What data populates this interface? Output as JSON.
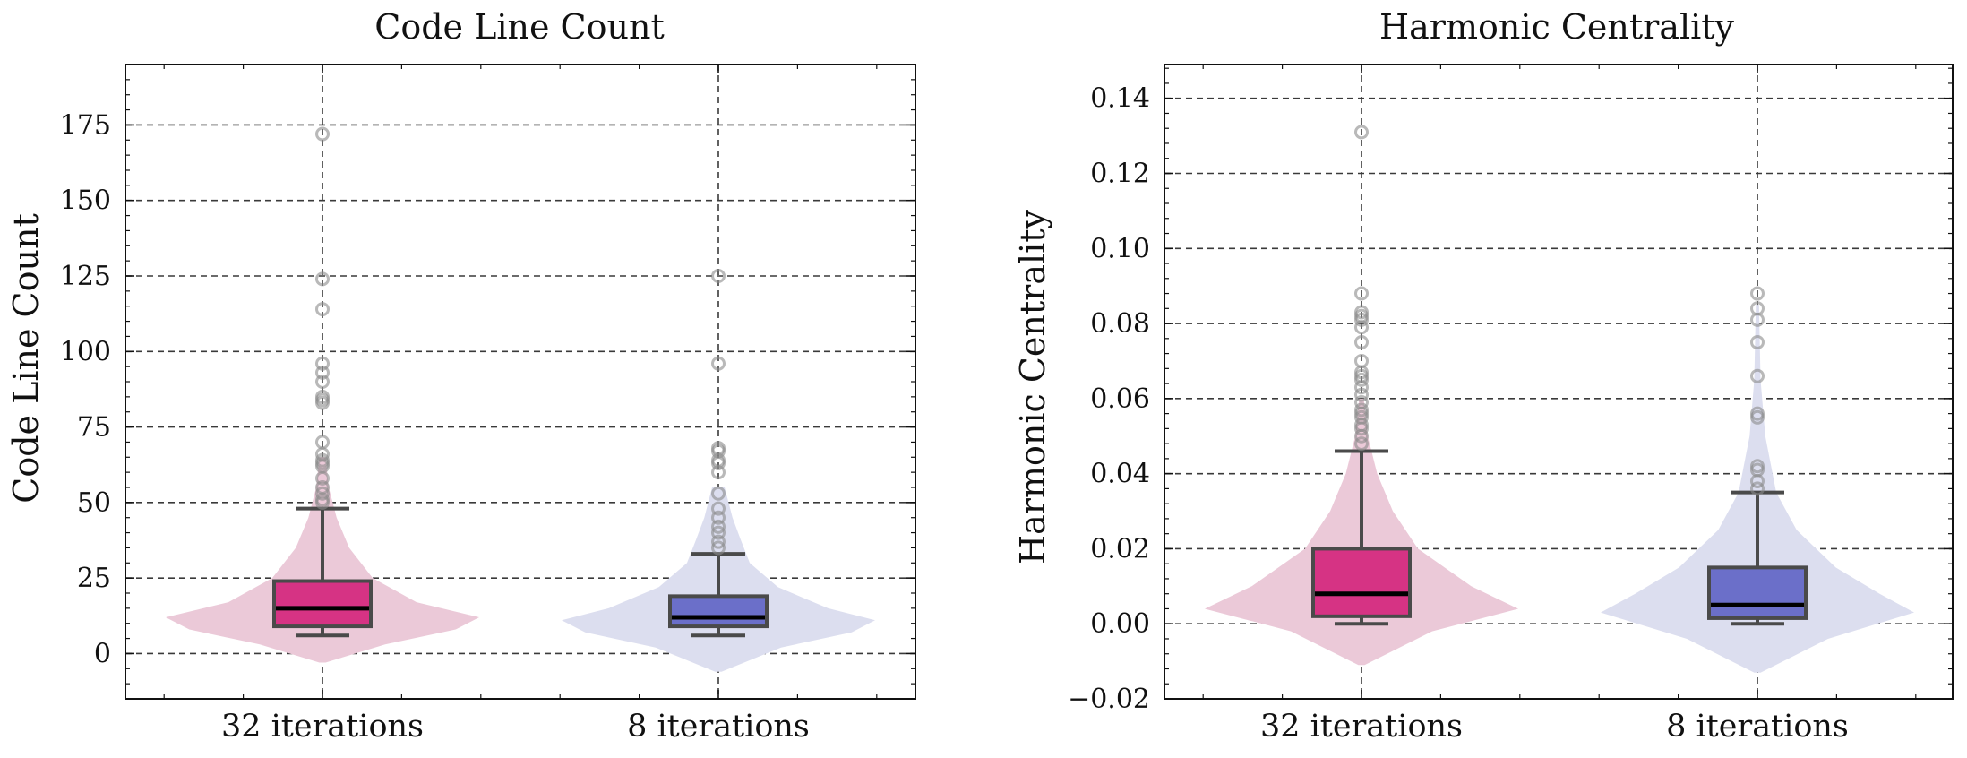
{
  "chart_data": [
    {
      "type": "box",
      "title": "Code Line Count",
      "ylabel": "Code Line Count",
      "xlabel": "",
      "categories": [
        "32 iterations",
        "8 iterations"
      ],
      "ylim": [
        -15,
        195
      ],
      "yticks": [
        0,
        25,
        50,
        75,
        100,
        125,
        150,
        175
      ],
      "ytick_labels": [
        "0",
        "25",
        "50",
        "75",
        "100",
        "125",
        "150",
        "175"
      ],
      "grid": true,
      "series": [
        {
          "category": "32 iterations",
          "color": "#d63384",
          "violin_color": "#ebc9d8",
          "whisker_low": 6,
          "q1": 9,
          "median": 15,
          "q3": 24,
          "whisker_high": 48,
          "outliers": [
            50,
            51,
            53,
            55,
            58,
            62,
            63,
            64,
            66,
            70,
            83,
            84,
            85,
            90,
            93,
            96,
            114,
            124,
            172
          ],
          "violin": [
            [
              -3,
              0.02
            ],
            [
              3,
              0.4
            ],
            [
              8,
              0.85
            ],
            [
              12,
              1.0
            ],
            [
              17,
              0.6
            ],
            [
              25,
              0.32
            ],
            [
              35,
              0.17
            ],
            [
              45,
              0.09
            ],
            [
              55,
              0.04
            ],
            [
              65,
              0.02
            ]
          ]
        },
        {
          "category": "8 iterations",
          "color": "#6b6fc9",
          "violin_color": "#dcdeef",
          "whisker_low": 6,
          "q1": 9,
          "median": 12,
          "q3": 19,
          "whisker_high": 33,
          "outliers": [
            35,
            37,
            40,
            42,
            45,
            48,
            53,
            60,
            63,
            64,
            67,
            68,
            96,
            125
          ],
          "violin": [
            [
              -6,
              0.02
            ],
            [
              2,
              0.4
            ],
            [
              7,
              0.85
            ],
            [
              11,
              1.0
            ],
            [
              15,
              0.7
            ],
            [
              22,
              0.38
            ],
            [
              30,
              0.2
            ],
            [
              38,
              0.14
            ],
            [
              45,
              0.09
            ],
            [
              55,
              0.04
            ]
          ]
        }
      ]
    },
    {
      "type": "box",
      "title": "Harmonic Centrality",
      "ylabel": "Harmonic Centrality",
      "xlabel": "",
      "categories": [
        "32 iterations",
        "8 iterations"
      ],
      "ylim": [
        -0.02,
        0.149
      ],
      "yticks": [
        -0.02,
        0.0,
        0.02,
        0.04,
        0.06,
        0.08,
        0.1,
        0.12,
        0.14
      ],
      "ytick_labels": [
        "−0.02",
        "0.00",
        "0.02",
        "0.04",
        "0.06",
        "0.08",
        "0.10",
        "0.12",
        "0.14"
      ],
      "grid": true,
      "series": [
        {
          "category": "32 iterations",
          "color": "#d63384",
          "violin_color": "#ebc9d8",
          "whisker_low": 0.0,
          "q1": 0.002,
          "median": 0.008,
          "q3": 0.02,
          "whisker_high": 0.046,
          "outliers": [
            0.048,
            0.05,
            0.052,
            0.053,
            0.055,
            0.056,
            0.057,
            0.059,
            0.061,
            0.063,
            0.065,
            0.066,
            0.067,
            0.07,
            0.075,
            0.079,
            0.081,
            0.082,
            0.083,
            0.088,
            0.131
          ],
          "violin": [
            [
              -0.011,
              0.02
            ],
            [
              -0.002,
              0.45
            ],
            [
              0.004,
              1.0
            ],
            [
              0.01,
              0.7
            ],
            [
              0.02,
              0.36
            ],
            [
              0.03,
              0.2
            ],
            [
              0.04,
              0.1
            ],
            [
              0.05,
              0.04
            ],
            [
              0.06,
              0.015
            ]
          ]
        },
        {
          "category": "8 iterations",
          "color": "#6b6fc9",
          "violin_color": "#dcdeef",
          "whisker_low": 0.0,
          "q1": 0.0015,
          "median": 0.005,
          "q3": 0.015,
          "whisker_high": 0.035,
          "outliers": [
            0.036,
            0.038,
            0.041,
            0.042,
            0.055,
            0.056,
            0.066,
            0.075,
            0.081,
            0.084,
            0.088
          ],
          "violin": [
            [
              -0.013,
              0.02
            ],
            [
              -0.004,
              0.45
            ],
            [
              0.003,
              1.0
            ],
            [
              0.008,
              0.78
            ],
            [
              0.015,
              0.5
            ],
            [
              0.025,
              0.25
            ],
            [
              0.035,
              0.12
            ],
            [
              0.05,
              0.05
            ],
            [
              0.065,
              0.02
            ],
            [
              0.085,
              0.01
            ]
          ]
        }
      ]
    }
  ]
}
